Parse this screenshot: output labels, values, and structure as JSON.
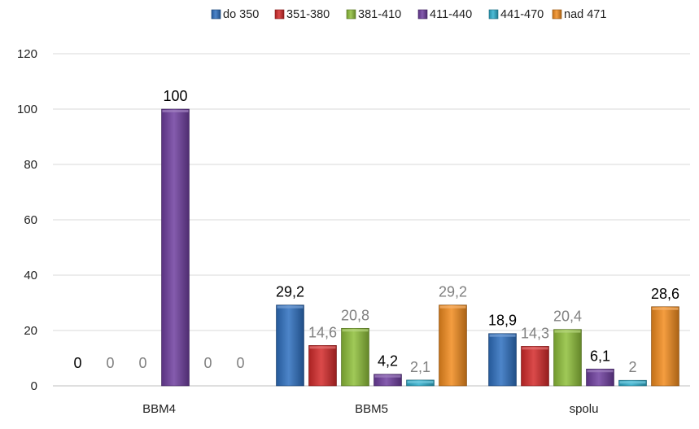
{
  "chart_data": {
    "type": "bar",
    "categories": [
      "BBM4",
      "BBM5",
      "spolu"
    ],
    "series": [
      {
        "name": "do 350",
        "color": "#2e6fbf",
        "values": [
          0,
          29.2,
          18.9
        ],
        "labels": [
          "0",
          "29,2",
          "18,9"
        ]
      },
      {
        "name": "351-380",
        "color": "#d42a2a",
        "values": [
          0,
          14.6,
          14.3
        ],
        "labels": [
          "0",
          "14,6",
          "14,3"
        ]
      },
      {
        "name": "381-410",
        "color": "#8fbf3a",
        "values": [
          0,
          20.8,
          20.4
        ],
        "labels": [
          "0",
          "20,8",
          "20,4"
        ]
      },
      {
        "name": "411-440",
        "color": "#6f3fa0",
        "values": [
          100,
          4.2,
          6.1
        ],
        "labels": [
          "100",
          "4,2",
          "6,1"
        ]
      },
      {
        "name": "441-470",
        "color": "#2fb0cf",
        "values": [
          0,
          2.1,
          2
        ],
        "labels": [
          "0",
          "2,1",
          "2"
        ]
      },
      {
        "name": "nad 471",
        "color": "#f28c1e",
        "values": [
          0,
          29.2,
          28.6
        ],
        "labels": [
          "0",
          "29,2",
          "28,6"
        ]
      }
    ],
    "ylim": [
      0,
      120
    ],
    "yticks": [
      0,
      20,
      40,
      60,
      80,
      100,
      120
    ],
    "grid": true,
    "legend": "top",
    "label_colors": {
      "dark": "#000000",
      "grey": "#808080"
    }
  }
}
